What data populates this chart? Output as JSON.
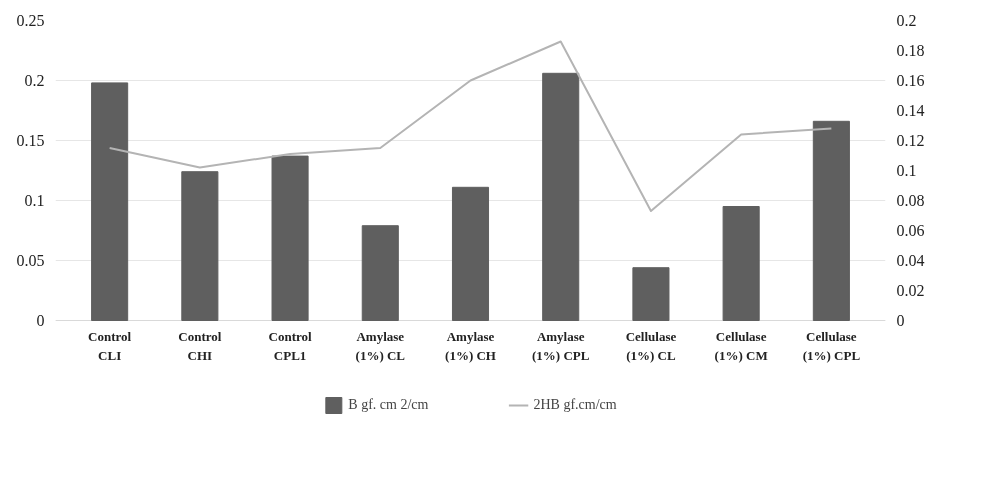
{
  "chart_data": {
    "type": "bar",
    "categories": [
      "Control\nCLI",
      "Control\nCHI",
      "Control\nCPL1",
      "Amylase\n(1%) CL",
      "Amylase\n(1%) CH",
      "Amylase\n(1%) CPL",
      "Cellulase\n(1%) CL",
      "Cellulase\n(1%) CM",
      "Cellulase\n(1%) CPL"
    ],
    "series": [
      {
        "name": "B gf. cm 2/cm",
        "color": "#5f5f5f",
        "type": "bar",
        "values": [
          0.198,
          0.124,
          0.137,
          0.079,
          0.111,
          0.206,
          0.044,
          0.095,
          0.166
        ]
      },
      {
        "name": "2HB gf.cm/cm",
        "color": "#b4b4b4",
        "type": "line",
        "axis": "y2",
        "values": [
          0.115,
          0.102,
          0.111,
          0.115,
          0.16,
          0.186,
          0.073,
          0.124,
          0.128
        ]
      }
    ],
    "ylim": [
      0,
      0.25
    ],
    "yticks": [
      0,
      0.05,
      0.1,
      0.15,
      0.2,
      0.25
    ],
    "y2lim": [
      0,
      0.2
    ],
    "y2ticks": [
      0,
      0.02,
      0.04,
      0.06,
      0.08,
      0.1,
      0.12,
      0.14,
      0.16,
      0.18,
      0.2
    ],
    "grid": "y",
    "legend": "bottom"
  }
}
